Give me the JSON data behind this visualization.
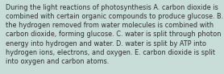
{
  "lines": [
    "During the light reactions of photosynthesis A. carbon dioxide is",
    "combined with certain organic compounds to produce glucose. B.",
    "the hydrogen removed from water molecules is combined with",
    "carbon dioxide, forming glucose. C. water is split through photon",
    "energy into hydrogen and water. D. water is split by ATP into",
    "hydrogen ions, electrons, and oxygen. E. carbon dioxide is split",
    "into oxygen and carbon atoms."
  ],
  "font_size": 5.85,
  "text_color": "#2d2d2d",
  "background_color": "#c8ddd8",
  "font_family": "DejaVu Sans"
}
